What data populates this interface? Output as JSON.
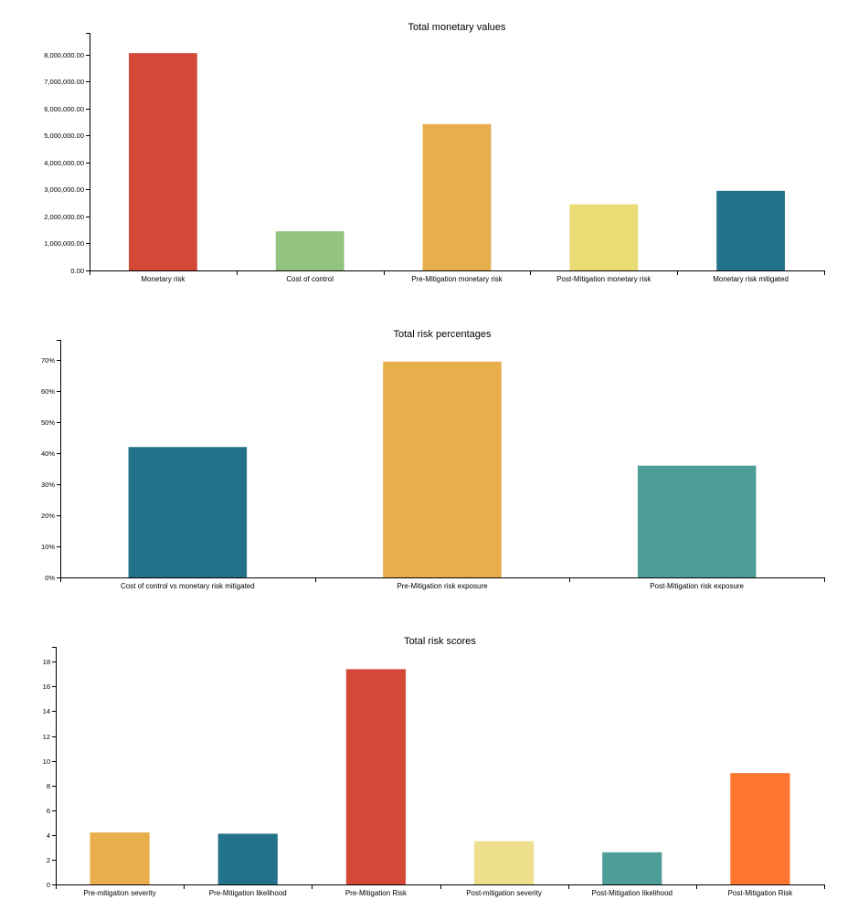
{
  "chart_data": [
    {
      "type": "bar",
      "title": "Total monetary values",
      "xlabel": "",
      "ylabel": "",
      "ylim": [
        0,
        8800000
      ],
      "yticks": [
        0,
        1000000,
        2000000,
        3000000,
        4000000,
        5000000,
        6000000,
        7000000,
        8000000
      ],
      "ytick_format": "money",
      "grid": false,
      "categories": [
        "Monetary risk",
        "Cost of control",
        "Pre-Mitigation monetary risk",
        "Post-Mitigation monetary risk",
        "Monetary risk mitigated"
      ],
      "values": [
        8050000,
        1450000,
        5420000,
        2450000,
        2950000
      ],
      "colors": [
        "#d44838",
        "#93c47d",
        "#e8ae4c",
        "#eadc74",
        "#23728a"
      ]
    },
    {
      "type": "bar",
      "title": "Total risk percentages",
      "xlabel": "",
      "ylabel": "",
      "ylim": [
        0,
        0.765
      ],
      "yticks": [
        0,
        0.1,
        0.2,
        0.3,
        0.4,
        0.5,
        0.6,
        0.7
      ],
      "ytick_format": "percent",
      "grid": false,
      "categories": [
        "Cost of control vs monetary risk mitigated",
        "Pre-Mitigation risk exposure",
        "Post-Mitigation risk exposure"
      ],
      "values": [
        0.42,
        0.695,
        0.36
      ],
      "colors": [
        "#23728a",
        "#e8ae4c",
        "#4e9e98"
      ]
    },
    {
      "type": "bar",
      "title": "Total risk scores",
      "xlabel": "",
      "ylabel": "",
      "ylim": [
        0,
        19.2
      ],
      "yticks": [
        0,
        2,
        4,
        6,
        8,
        10,
        12,
        14,
        16,
        18
      ],
      "ytick_format": "int",
      "grid": false,
      "categories": [
        "Pre-mitigation severity",
        "Pre-Mitigation likelihood",
        "Pre-Mitigation Risk",
        "Post-mitigation severity",
        "Post-Mitigation likelihood",
        "Post-Mitigation Risk"
      ],
      "values": [
        4.2,
        4.1,
        17.4,
        3.5,
        2.6,
        9.0
      ],
      "colors": [
        "#e8ae4c",
        "#23728a",
        "#d44838",
        "#efe08e",
        "#4e9e98",
        "#fe7530"
      ]
    }
  ]
}
